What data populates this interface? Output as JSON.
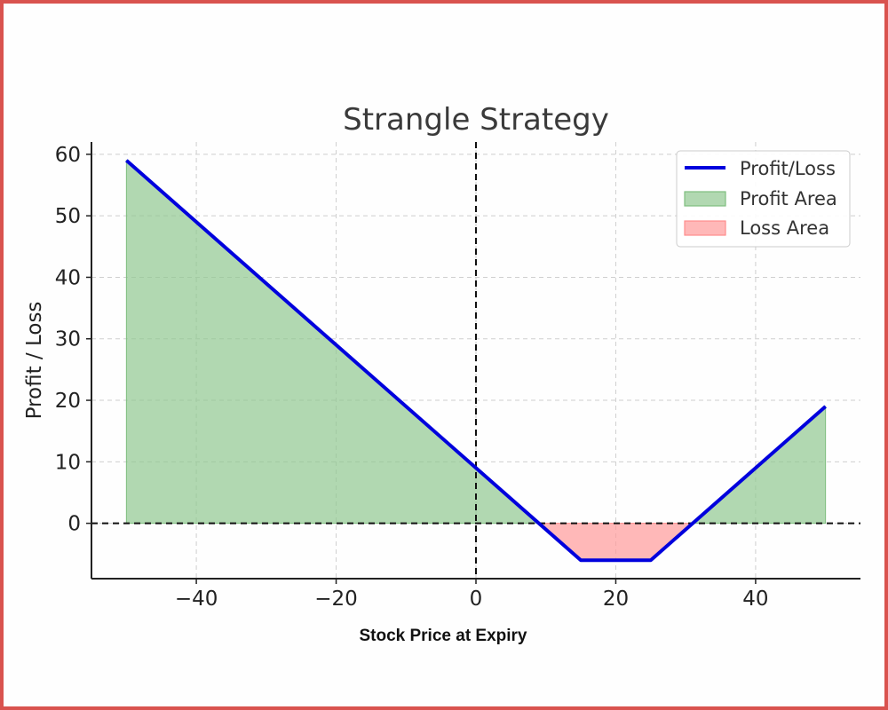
{
  "chart_data": {
    "type": "line",
    "title": "Strangle Strategy",
    "xlabel": "Stock Price at Expiry",
    "ylabel": "Profit / Loss",
    "xlim": [
      -55,
      55
    ],
    "ylim": [
      -9,
      62
    ],
    "x_ticks": [
      -40,
      -20,
      0,
      20,
      40
    ],
    "x_tick_labels": [
      "−40",
      "−20",
      "0",
      "20",
      "40"
    ],
    "y_ticks": [
      0,
      10,
      20,
      30,
      40,
      50,
      60
    ],
    "y_tick_labels": [
      "0",
      "10",
      "20",
      "30",
      "40",
      "50",
      "60"
    ],
    "grid": true,
    "legend_position": "top-right",
    "reference_lines": {
      "horizontal_y": 0,
      "vertical_x": 0
    },
    "series": [
      {
        "name": "Profit/Loss",
        "color": "#0000dd",
        "points": [
          [
            -50,
            59
          ],
          [
            15,
            -6
          ],
          [
            25,
            -6
          ],
          [
            50,
            19
          ]
        ]
      }
    ],
    "areas": [
      {
        "name": "Profit Area",
        "color": "#90c890",
        "region": "above_zero"
      },
      {
        "name": "Loss Area",
        "color": "#ff9a9a",
        "region": "below_zero"
      }
    ],
    "legend": [
      "Profit/Loss",
      "Profit Area",
      "Loss Area"
    ]
  }
}
